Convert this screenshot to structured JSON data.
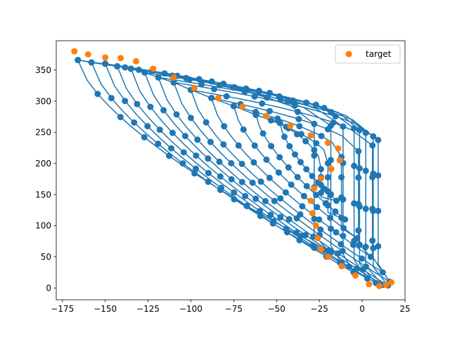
{
  "chart_data": {
    "type": "scatter",
    "title": "",
    "xlabel": "",
    "ylabel": "",
    "xlim": [
      -178.6,
      25
    ],
    "ylim": [
      -19,
      397
    ],
    "xticks": [
      -175,
      -150,
      -125,
      -100,
      -75,
      -50,
      -25,
      0,
      25
    ],
    "yticks": [
      0,
      50,
      100,
      150,
      200,
      250,
      300,
      350
    ],
    "grid": false,
    "legend": {
      "position": "top-right",
      "entries": [
        "target"
      ]
    },
    "series": [
      {
        "role": "trajectory",
        "color": "#1f77b4",
        "style": "line-with-markers",
        "loops": [
          {
            "top": [
              -166,
              366
            ],
            "bottom": [
              -20,
              60
            ]
          },
          {
            "top": [
              -158,
              362
            ],
            "bottom": [
              -12,
              40
            ]
          },
          {
            "top": [
              -150,
              360
            ],
            "bottom": [
              -5,
              25
            ]
          },
          {
            "top": [
              -143,
              356
            ],
            "bottom": [
              3,
              15
            ]
          },
          {
            "top": [
              -135,
              352
            ],
            "bottom": [
              8,
              8
            ]
          },
          {
            "top": [
              -127,
              346
            ],
            "bottom": [
              12,
              5
            ]
          },
          {
            "top": [
              -119,
              338
            ],
            "bottom": [
              15,
              4
            ]
          },
          {
            "top": [
              -110,
              330
            ],
            "bottom": [
              16,
              10
            ]
          },
          {
            "top": [
              -100,
              318
            ],
            "bottom": [
              12,
              25
            ]
          },
          {
            "top": [
              -88,
              305
            ],
            "bottom": [
              5,
              50
            ]
          },
          {
            "top": [
              -75,
              292
            ],
            "bottom": [
              -3,
              80
            ]
          },
          {
            "top": [
              -62,
              278
            ],
            "bottom": [
              -10,
              110
            ]
          },
          {
            "top": [
              -48,
              265
            ],
            "bottom": [
              -15,
              140
            ]
          }
        ]
      },
      {
        "name": "target",
        "color": "#ff7f0e",
        "points": [
          [
            -168,
            380
          ],
          [
            -160,
            375
          ],
          [
            -150,
            370
          ],
          [
            -141,
            369
          ],
          [
            -132,
            364
          ],
          [
            -122,
            352
          ],
          [
            -110,
            338
          ],
          [
            -98,
            321
          ],
          [
            -84,
            305
          ],
          [
            -70,
            291
          ],
          [
            -56,
            276
          ],
          [
            -42,
            260
          ],
          [
            -30,
            245
          ],
          [
            -20,
            233
          ],
          [
            -14,
            224
          ],
          [
            -13,
            205
          ],
          [
            -18,
            191
          ],
          [
            -24,
            176
          ],
          [
            -28,
            160
          ],
          [
            -30,
            140
          ],
          [
            -29,
            120
          ],
          [
            -27,
            100
          ],
          [
            -26,
            80
          ],
          [
            -24,
            62
          ],
          [
            -20,
            50
          ],
          [
            -12,
            35
          ],
          [
            -4,
            20
          ],
          [
            4,
            6
          ],
          [
            10,
            3
          ],
          [
            14,
            5
          ],
          [
            17,
            9
          ]
        ]
      }
    ]
  }
}
